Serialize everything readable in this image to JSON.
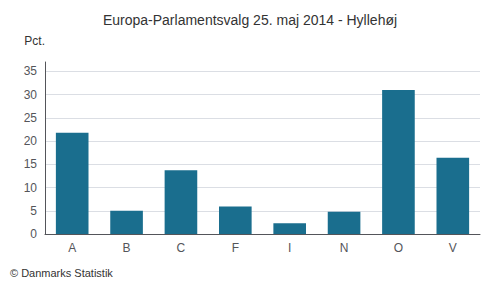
{
  "chart_data": {
    "type": "bar",
    "title": "Europa-Parlamentsvalg 25. maj 2014 - Hyllehøj",
    "ylabel": "Pct.",
    "annotations": [
      "© Danmarks Statistik"
    ],
    "categories": [
      "A",
      "B",
      "C",
      "F",
      "I",
      "N",
      "O",
      "V"
    ],
    "values": [
      21.8,
      5.0,
      13.7,
      5.9,
      2.3,
      4.8,
      31.0,
      16.4
    ],
    "color": "#1a6e8e",
    "ylim": [
      0,
      37
    ],
    "yticks": [
      0,
      5,
      10,
      15,
      20,
      25,
      30,
      35
    ],
    "grid": true
  }
}
